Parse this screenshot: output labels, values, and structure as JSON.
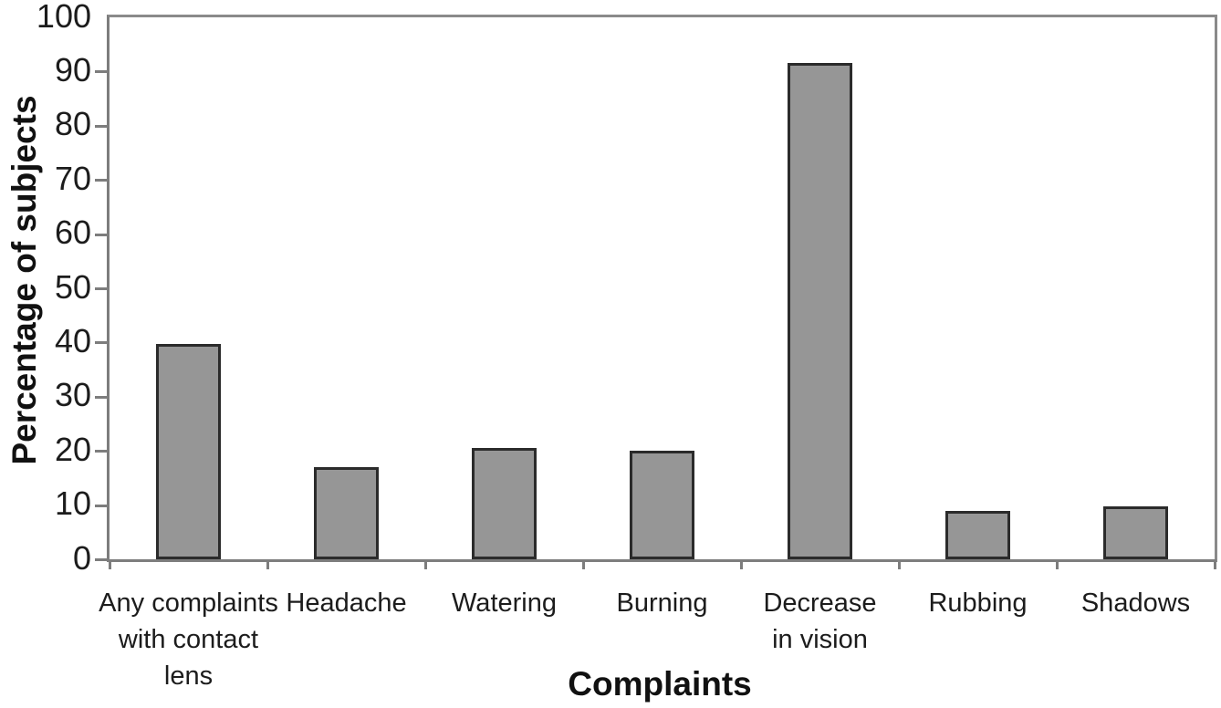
{
  "chart_data": {
    "type": "bar",
    "title": "",
    "xlabel": "Complaints",
    "ylabel": "Percentage of subjects",
    "categories": [
      "Any complaints with contact lens",
      "Headache",
      "Watering",
      "Burning",
      "Decrease in vision",
      "Rubbing",
      "Shadows"
    ],
    "category_lines": [
      [
        "Any complaints",
        "with contact",
        "lens"
      ],
      [
        "Headache"
      ],
      [
        "Watering"
      ],
      [
        "Burning"
      ],
      [
        "Decrease",
        "in vision"
      ],
      [
        "Rubbing"
      ],
      [
        "Shadows"
      ]
    ],
    "values": [
      39.7,
      17,
      20.5,
      20,
      91.5,
      9,
      9.7
    ],
    "ylim": [
      0,
      100
    ],
    "yticks": [
      0,
      10,
      20,
      30,
      40,
      50,
      60,
      70,
      80,
      90,
      100
    ],
    "legend": "none",
    "grid": "off",
    "colors": {
      "bar_fill": "#969696",
      "bar_border": "#2b2b2b",
      "axis_line": "#7d7d7d",
      "text": "#1c1c1c"
    }
  }
}
